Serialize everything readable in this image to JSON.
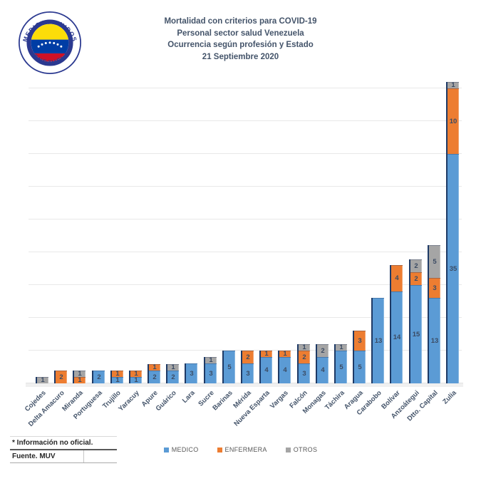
{
  "logo": {
    "text_top": "MEDICOS UNIDOS",
    "text_bottom": "VENEZUELA",
    "colors": {
      "ring_blue": "#2B3990",
      "flag_yellow": "#FCDD09",
      "flag_blue": "#003DA5",
      "flag_red": "#CE1126"
    }
  },
  "title": {
    "line1": "Mortalidad con criterios para COVID-19",
    "line2": "Personal sector salud Venezuela",
    "line3": "Ocurrencia según profesión y Estado",
    "line4": "21 Septiembre 2020"
  },
  "chart_data": {
    "type": "bar",
    "stacked": true,
    "categories": [
      "Cojedes",
      "Delta Amacuro",
      "Miranda",
      "Portuguesa",
      "Trujillo",
      "Yaracuy",
      "Apure",
      "Guárico",
      "Lara",
      "Sucre",
      "Barinas",
      "Mérida",
      "Nueva Esparta",
      "Vargas",
      "Falcón",
      "Monagas",
      "Táchira",
      "Aragua",
      "Carabobo",
      "Bolívar",
      "Anzoátegui",
      "Dtto. Capital",
      "Zulia"
    ],
    "series": [
      {
        "name": "MEDICO",
        "color": "#5B9BD5",
        "values": [
          0,
          0,
          0,
          2,
          1,
          1,
          2,
          2,
          3,
          3,
          5,
          3,
          4,
          4,
          3,
          4,
          5,
          5,
          13,
          14,
          15,
          13,
          35
        ]
      },
      {
        "name": "ENFERMERA",
        "color": "#ED7D31",
        "values": [
          0,
          2,
          1,
          0,
          1,
          1,
          1,
          0,
          0,
          0,
          0,
          2,
          1,
          1,
          2,
          0,
          0,
          3,
          0,
          4,
          2,
          3,
          10
        ]
      },
      {
        "name": "OTROS",
        "color": "#A5A5A5",
        "values": [
          1,
          0,
          1,
          0,
          0,
          0,
          0,
          1,
          0,
          1,
          0,
          0,
          0,
          0,
          1,
          2,
          1,
          0,
          0,
          0,
          2,
          5,
          1
        ]
      }
    ],
    "totals": [
      1,
      2,
      2,
      2,
      2,
      2,
      3,
      3,
      3,
      4,
      5,
      5,
      5,
      5,
      6,
      6,
      6,
      8,
      13,
      18,
      19,
      21,
      46
    ],
    "title": "Mortalidad con criterios para COVID-19 — Personal sector salud Venezuela",
    "xlabel": "",
    "ylabel": "",
    "ylim": [
      0,
      47
    ],
    "gridline_step": 5,
    "gridline_max": 45,
    "grid": true,
    "legend_position": "bottom",
    "value_labels": "inside",
    "label_color": "#44546A"
  },
  "footer": {
    "note": "* Información no oficial.",
    "source": "Fuente. MUV"
  }
}
